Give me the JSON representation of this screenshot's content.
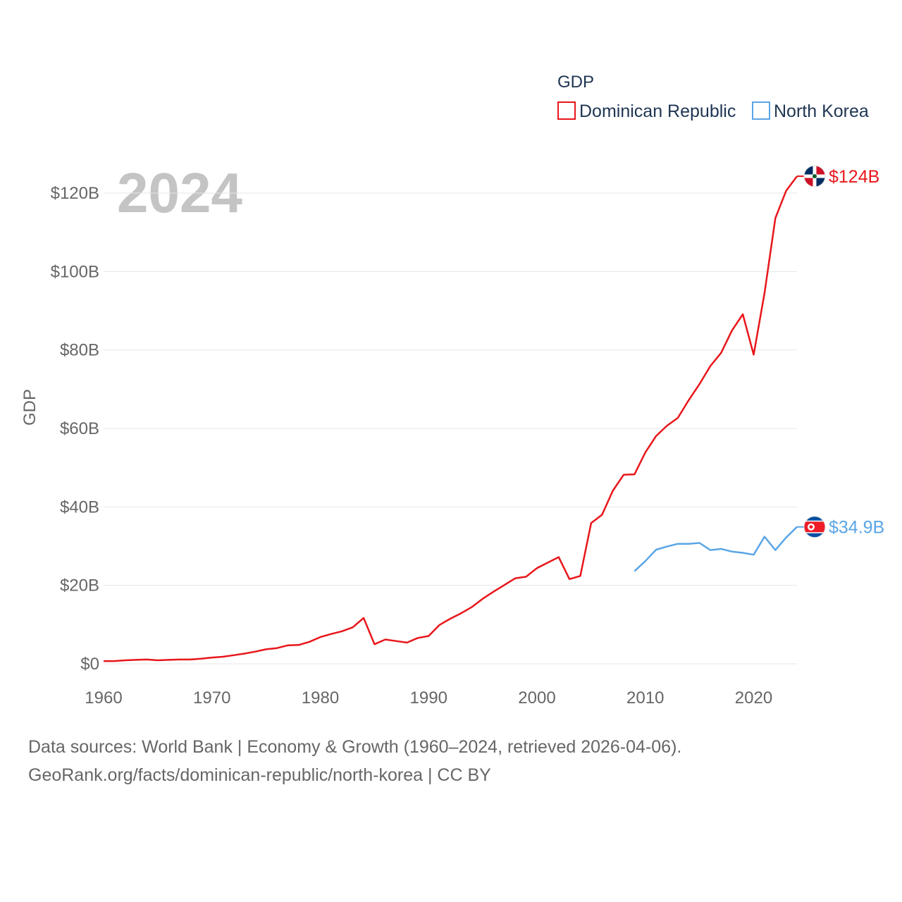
{
  "chart_data": {
    "type": "line",
    "watermark": "2024",
    "ylabel": "GDP",
    "legend_title": "GDP",
    "x_ticks": [
      1960,
      1970,
      1980,
      1990,
      2000,
      2010,
      2020
    ],
    "y_ticks": [
      {
        "value": 0,
        "label": "$0"
      },
      {
        "value": 20,
        "label": "$20B"
      },
      {
        "value": 40,
        "label": "$40B"
      },
      {
        "value": 60,
        "label": "$60B"
      },
      {
        "value": 80,
        "label": "$80B"
      },
      {
        "value": 100,
        "label": "$100B"
      },
      {
        "value": 120,
        "label": "$120B"
      }
    ],
    "xlim": [
      1960,
      2024
    ],
    "ylim": [
      0,
      124
    ],
    "series": [
      {
        "name": "Dominican Republic",
        "color": "#e8161b",
        "flag": "dominican-republic-flag-icon",
        "end_label": "$124B",
        "x": [
          1960,
          1961,
          1962,
          1963,
          1964,
          1965,
          1966,
          1967,
          1968,
          1969,
          1970,
          1971,
          1972,
          1973,
          1974,
          1975,
          1976,
          1977,
          1978,
          1979,
          1980,
          1981,
          1982,
          1983,
          1984,
          1985,
          1986,
          1987,
          1988,
          1989,
          1990,
          1991,
          1992,
          1993,
          1994,
          1995,
          1996,
          1997,
          1998,
          1999,
          2000,
          2001,
          2002,
          2003,
          2004,
          2005,
          2006,
          2007,
          2008,
          2009,
          2010,
          2011,
          2012,
          2013,
          2014,
          2015,
          2016,
          2017,
          2018,
          2019,
          2020,
          2021,
          2022,
          2023,
          2024
        ],
        "values": [
          0.7,
          0.7,
          0.9,
          1.0,
          1.1,
          0.9,
          1.0,
          1.1,
          1.1,
          1.3,
          1.6,
          1.8,
          2.2,
          2.6,
          3.1,
          3.7,
          4.0,
          4.7,
          4.8,
          5.6,
          6.8,
          7.6,
          8.3,
          9.3,
          11.7,
          5.0,
          6.2,
          5.8,
          5.4,
          6.6,
          7.1,
          9.9,
          11.5,
          12.9,
          14.5,
          16.6,
          18.4,
          20.1,
          21.8,
          22.2,
          24.4,
          25.8,
          27.2,
          21.6,
          22.4,
          35.9,
          38.0,
          44.1,
          48.2,
          48.3,
          53.9,
          58.1,
          60.7,
          62.7,
          67.2,
          71.3,
          75.9,
          79.3,
          85.0,
          89.1,
          78.8,
          94.5,
          113.6,
          120.6,
          124.3
        ]
      },
      {
        "name": "North Korea",
        "color": "#5aa5e6",
        "flag": "north-korea-flag-icon",
        "end_label": "$34.9B",
        "x": [
          2009,
          2010,
          2011,
          2012,
          2013,
          2014,
          2015,
          2016,
          2017,
          2018,
          2019,
          2020,
          2021,
          2022,
          2023,
          2024
        ],
        "values": [
          23.6,
          26.2,
          29.1,
          29.9,
          30.6,
          30.6,
          30.8,
          29.0,
          29.3,
          28.6,
          28.3,
          27.8,
          32.4,
          29.0,
          32.2,
          34.9
        ]
      }
    ]
  },
  "footer": {
    "line1": "Data sources: World Bank | Economy & Growth (1960–2024, retrieved 2026-04-06).",
    "line2": "GeoRank.org/facts/dominican-republic/north-korea | CC BY"
  }
}
